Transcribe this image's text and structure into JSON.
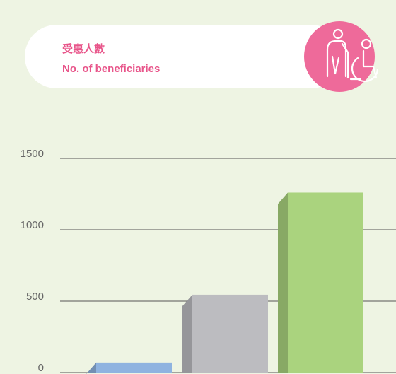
{
  "chart_data": {
    "type": "bar",
    "title": "受惠人數",
    "subtitle": "No. of beneficiaries",
    "categories": [
      null,
      null,
      null
    ],
    "values": [
      70,
      545,
      1260
    ],
    "colors": [
      "#8fb3e0",
      "#bcbcc0",
      "#aad37e"
    ],
    "ylim": [
      0,
      1500
    ],
    "yticks": [
      0,
      500,
      1000,
      1500
    ],
    "grid": true
  }
}
